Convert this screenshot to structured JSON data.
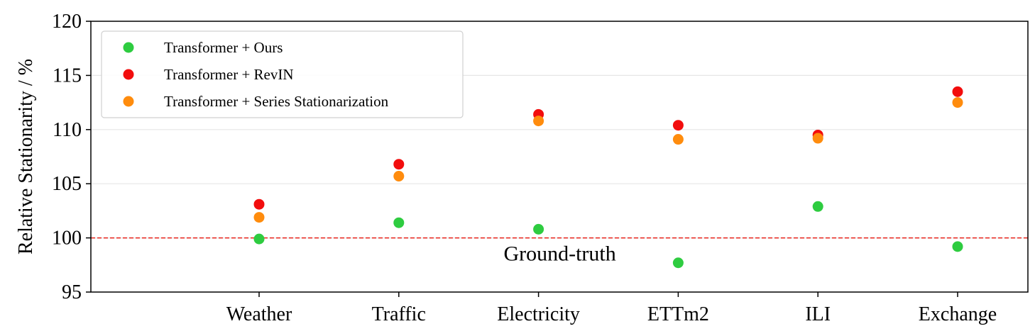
{
  "chart_data": {
    "type": "scatter",
    "categories": [
      "Weather",
      "Traffic",
      "Electricity",
      "ETTm2",
      "ILI",
      "Exchange"
    ],
    "series": [
      {
        "name": "Transformer + Ours",
        "color": "#2ecc40",
        "values": [
          99.9,
          101.4,
          100.8,
          97.7,
          102.9,
          99.2
        ]
      },
      {
        "name": "Transformer + RevIN",
        "color": "#f20d0d",
        "values": [
          103.1,
          106.8,
          111.4,
          110.4,
          109.5,
          113.5
        ]
      },
      {
        "name": "Transformer + Series Stationarization",
        "color": "#ff8c0d",
        "values": [
          101.9,
          105.7,
          110.8,
          109.1,
          109.2,
          112.5
        ]
      }
    ],
    "ylabel": "Relative Stationarity / %",
    "xlabel": "",
    "ylim": [
      95,
      120
    ],
    "yticks": [
      95,
      100,
      105,
      110,
      115,
      120
    ],
    "grid": "horizontal",
    "legend_position": "top-left",
    "reference_line": {
      "value": 100,
      "color": "#e8231a",
      "style": "dashed"
    },
    "annotations": [
      {
        "text": "Ground-truth",
        "category": "Electricity",
        "y": 98.7
      }
    ]
  }
}
